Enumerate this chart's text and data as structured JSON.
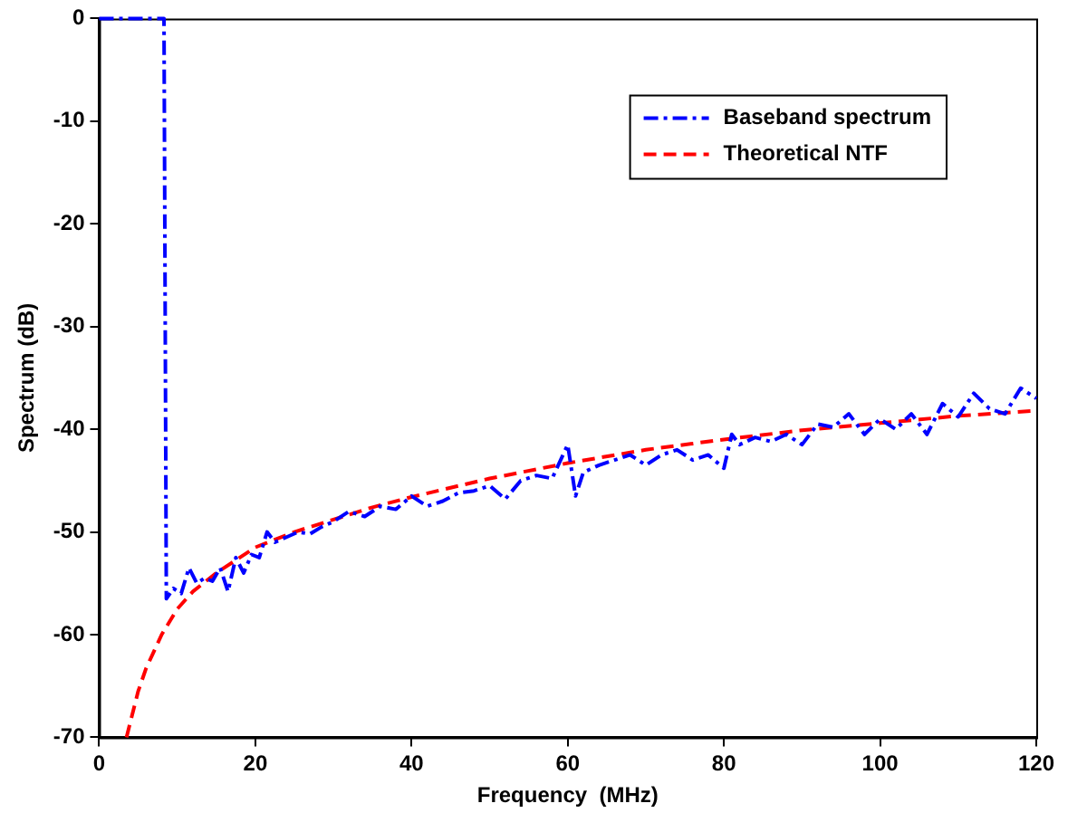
{
  "chart_data": {
    "type": "line",
    "xlabel": "Frequency  (MHz)",
    "ylabel": "Spectrum (dB)",
    "xlim": [
      0,
      120
    ],
    "ylim": [
      -70,
      0
    ],
    "xticks": [
      0,
      20,
      40,
      60,
      80,
      100,
      120
    ],
    "yticks": [
      -70,
      -60,
      -50,
      -40,
      -30,
      -20,
      -10,
      0
    ],
    "grid": false,
    "legend": "top right",
    "marker": "none",
    "series": [
      {
        "name": "Baseband spectrum",
        "color": "#0000ff",
        "line_style": "dashdot",
        "x": [
          0,
          8.3,
          8.6,
          9.5,
          10.5,
          11.5,
          12.5,
          13.5,
          14.5,
          15.5,
          16.5,
          17.5,
          18.5,
          19.5,
          20.5,
          21.5,
          22.5,
          24,
          25.5,
          27,
          28.5,
          30,
          32,
          34,
          36,
          38,
          40,
          42,
          44,
          46,
          48,
          50,
          52,
          54,
          56,
          58,
          60,
          61,
          62,
          64,
          66,
          68,
          70,
          72,
          74,
          76,
          78,
          80,
          81,
          82,
          84,
          86,
          88,
          90,
          92,
          94,
          96,
          98,
          100,
          102,
          104,
          106,
          108,
          110,
          112,
          114,
          116,
          118,
          120
        ],
        "values": [
          0,
          0,
          -56.5,
          -55.5,
          -56,
          -53.5,
          -55,
          -54.5,
          -54.8,
          -53.5,
          -55.8,
          -52.5,
          -54,
          -52.2,
          -52.5,
          -50,
          -51,
          -50.5,
          -50,
          -50.2,
          -49.5,
          -49,
          -48,
          -48.5,
          -47.5,
          -47.8,
          -46.5,
          -47.5,
          -47,
          -46.2,
          -46,
          -45.5,
          -46.8,
          -45,
          -44.5,
          -44.8,
          -41.5,
          -46.5,
          -44.2,
          -43.5,
          -43,
          -42.5,
          -43.5,
          -42.5,
          -42,
          -43,
          -42.5,
          -43.8,
          -40.5,
          -41.5,
          -40.8,
          -41.2,
          -40.5,
          -41.5,
          -39.5,
          -39.8,
          -38.5,
          -40.5,
          -39,
          -40,
          -38.5,
          -40.5,
          -37.5,
          -38.8,
          -36.5,
          -38,
          -38.5,
          -36,
          -37
        ]
      },
      {
        "name": "Theoretical NTF",
        "color": "#ff0000",
        "line_style": "dashed",
        "x": [
          3.5,
          5,
          6,
          8,
          10,
          12,
          15,
          18,
          20,
          25,
          30,
          35,
          40,
          45,
          50,
          60,
          70,
          80,
          90,
          100,
          110,
          120
        ],
        "values": [
          -70,
          -65.5,
          -63.3,
          -60,
          -57.5,
          -55.8,
          -54,
          -52.5,
          -51.5,
          -50,
          -48.8,
          -47.6,
          -46.6,
          -45.7,
          -44.8,
          -43.3,
          -42,
          -41,
          -40.1,
          -39.4,
          -38.7,
          -38.2
        ]
      }
    ]
  }
}
